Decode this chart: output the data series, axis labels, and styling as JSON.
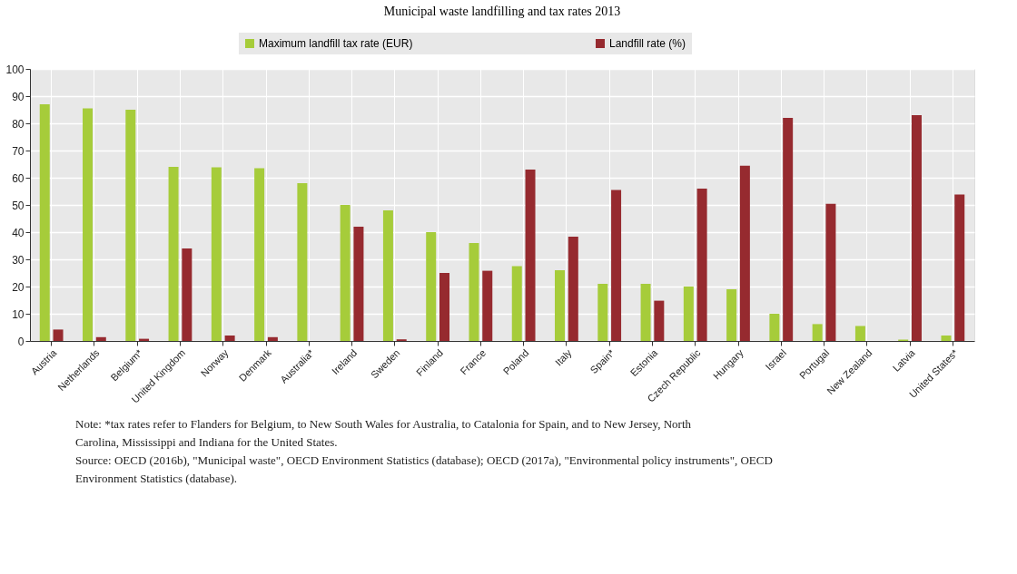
{
  "chart_data": {
    "type": "bar",
    "title": "Municipal waste landfilling and tax rates 2013",
    "categories": [
      "Austria",
      "Netherlands",
      "Belgium*",
      "United Kingdom",
      "Norway",
      "Denmark",
      "Australia*",
      "Ireland",
      "Sweden",
      "Finland",
      "France",
      "Poland",
      "Italy",
      "Spain*",
      "Estonia",
      "Czech Republic",
      "Hungary",
      "Israel",
      "Portugal",
      "New Zealand",
      "Latvia",
      "United States*"
    ],
    "series": [
      {
        "name": "Maximum landfill tax rate (EUR)",
        "color": "#a6cc3a",
        "values": [
          87,
          85.5,
          85,
          64,
          63.8,
          63.5,
          58,
          50,
          48,
          40,
          36,
          27.5,
          26,
          21,
          21,
          20,
          19,
          10,
          6.2,
          5.5,
          0.5,
          2
        ]
      },
      {
        "name": "Landfill rate (%)",
        "color": "#962a2f",
        "values": [
          4.2,
          1.4,
          0.8,
          34,
          2,
          1.4,
          null,
          42,
          0.6,
          25,
          25.8,
          63,
          38.3,
          55.5,
          14.8,
          56,
          64.4,
          82,
          50.4,
          null,
          83,
          53.8
        ]
      }
    ],
    "ylim": [
      0,
      100
    ],
    "yticks": [
      0,
      10,
      20,
      30,
      40,
      50,
      60,
      70,
      80,
      90,
      100
    ],
    "grid": true,
    "legend": "top",
    "annotations": [
      "Note: *tax rates refer to Flanders for Belgium, to New South Wales for Australia, to Catalonia for Spain, and to New Jersey, North Carolina, Mississippi and Indiana for the United States.",
      "Source: OECD (2016b), \"Municipal waste\", OECD Environment Statistics (database); OECD (2017a), \"Environmental policy instruments\", OECD Environment Statistics (database)."
    ]
  }
}
